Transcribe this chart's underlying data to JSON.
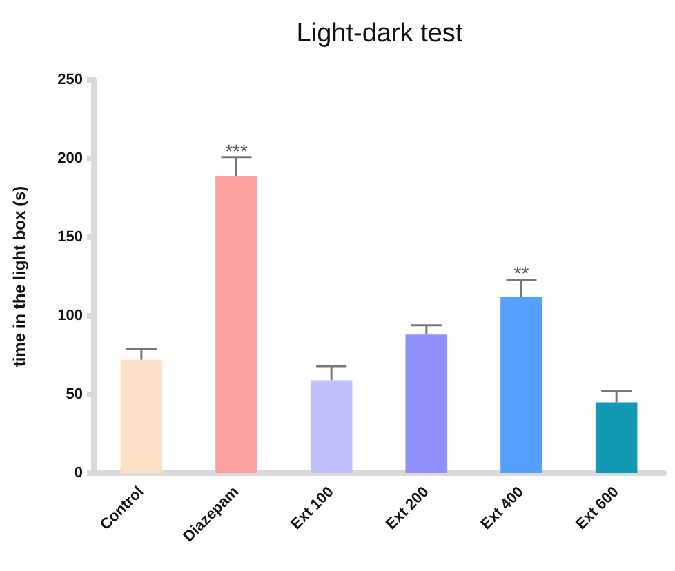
{
  "chart_data": {
    "type": "bar",
    "title": "Light-dark test",
    "ylabel": "time in the light box (s)",
    "categories": [
      "Control",
      "Diazepam",
      "Ext 100",
      "Ext 200",
      "Ext 400",
      "Ext 600"
    ],
    "values": [
      72,
      189,
      59,
      88,
      112,
      45
    ],
    "colors": [
      "#fde0c5",
      "#fca0a0",
      "#c0c0fc",
      "#8f8ffe",
      "#54a0fc",
      "#129ab4"
    ],
    "errors": [
      [
        72,
        79
      ],
      [
        189,
        201
      ],
      [
        59,
        68
      ],
      [
        88,
        94
      ],
      [
        112,
        123
      ],
      [
        45,
        52
      ]
    ],
    "annotations": [
      {
        "text": "***",
        "x": "Diazepam",
        "y": 205
      },
      {
        "text": "**",
        "x": "Ext 400",
        "y": 127
      }
    ],
    "ylim": [
      0,
      250
    ],
    "yticks": [
      0,
      50,
      100,
      150,
      200,
      250
    ],
    "grid": false
  }
}
